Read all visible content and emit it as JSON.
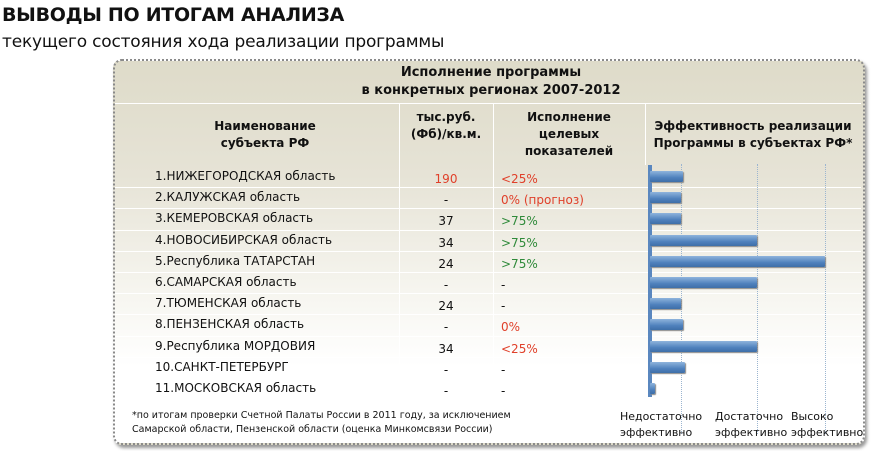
{
  "heading": "ВЫВОДЫ ПО ИТОГАМ АНАЛИЗА",
  "subheading": "текущего состояния хода реализации программы",
  "panel": {
    "title1": "Исполнение программы",
    "title2": "в конкретных регионах 2007-2012",
    "columns": {
      "name": [
        "Наименование",
        "субъекта РФ"
      ],
      "value": [
        "тыс.руб.",
        "(Фб)/кв.м."
      ],
      "exec": [
        "Исполнение",
        "целевых",
        "показателей"
      ],
      "chart": [
        "Эффективность реализации",
        "Программы в субъектах РФ*"
      ]
    },
    "rows": [
      {
        "name": "1.НИЖЕГОРОДСКАЯ область",
        "value": "190",
        "value_color": "#e0402a",
        "exec": "<25%",
        "exec_color": "#e0402a"
      },
      {
        "name": "2.КАЛУЖСКАЯ область",
        "value": "-",
        "value_color": "#111",
        "exec": "0% (прогноз)",
        "exec_color": "#e0402a"
      },
      {
        "name": "3.КЕМЕРОВСКАЯ область",
        "value": "37",
        "value_color": "#111",
        "exec": ">75%",
        "exec_color": "#2f8a3a"
      },
      {
        "name": "4.НОВОСИБИРСКАЯ область",
        "value": "34",
        "value_color": "#111",
        "exec": ">75%",
        "exec_color": "#2f8a3a"
      },
      {
        "name": "5.Республика ТАТАРСТАН",
        "value": "24",
        "value_color": "#111",
        "exec": ">75%",
        "exec_color": "#2f8a3a"
      },
      {
        "name": "6.САМАРСКАЯ область",
        "value": "-",
        "value_color": "#111",
        "exec": "-",
        "exec_color": "#111"
      },
      {
        "name": "7.ТЮМЕНСКАЯ область",
        "value": "24",
        "value_color": "#111",
        "exec": "-",
        "exec_color": "#111"
      },
      {
        "name": "8.ПЕНЗЕНСКАЯ область",
        "value": "-",
        "value_color": "#111",
        "exec": "0%",
        "exec_color": "#e0402a"
      },
      {
        "name": "9.Республика МОРДОВИЯ",
        "value": "34",
        "value_color": "#111",
        "exec": "<25%",
        "exec_color": "#e0402a"
      },
      {
        "name": "10.САНКТ-ПЕТЕРБУРГ",
        "value": "-",
        "value_color": "#111",
        "exec": "-",
        "exec_color": "#111"
      },
      {
        "name": "11.МОСКОВСКАЯ область",
        "value": "-",
        "value_color": "#111",
        "exec": "-",
        "exec_color": "#111"
      }
    ],
    "levels": [
      {
        "line1": "Недостаточно",
        "line2": "эффективно"
      },
      {
        "line1": "Достаточно",
        "line2": "эффективно"
      },
      {
        "line1": "Высоко",
        "line2": "эффективно"
      }
    ],
    "footnote1": "*по итогам проверки Счетной Палаты России в 2011 году, за исключением",
    "footnote2": "Самарской области, Пензенской области (оценка Минкомсвязи России)"
  },
  "chart_data": {
    "type": "bar",
    "orientation": "horizontal",
    "scale": "0 = none, 1 = Недостаточно эффективно, 2 = Достаточно эффективно, 3 = Высоко эффективно",
    "categories": [
      "1",
      "2",
      "3",
      "4",
      "5",
      "6",
      "7",
      "8",
      "9",
      "10",
      "11"
    ],
    "values": [
      1.03,
      1.0,
      1.0,
      2.0,
      3.0,
      2.0,
      1.0,
      1.03,
      2.0,
      1.05,
      0.15
    ],
    "color": "#4f81bd"
  }
}
